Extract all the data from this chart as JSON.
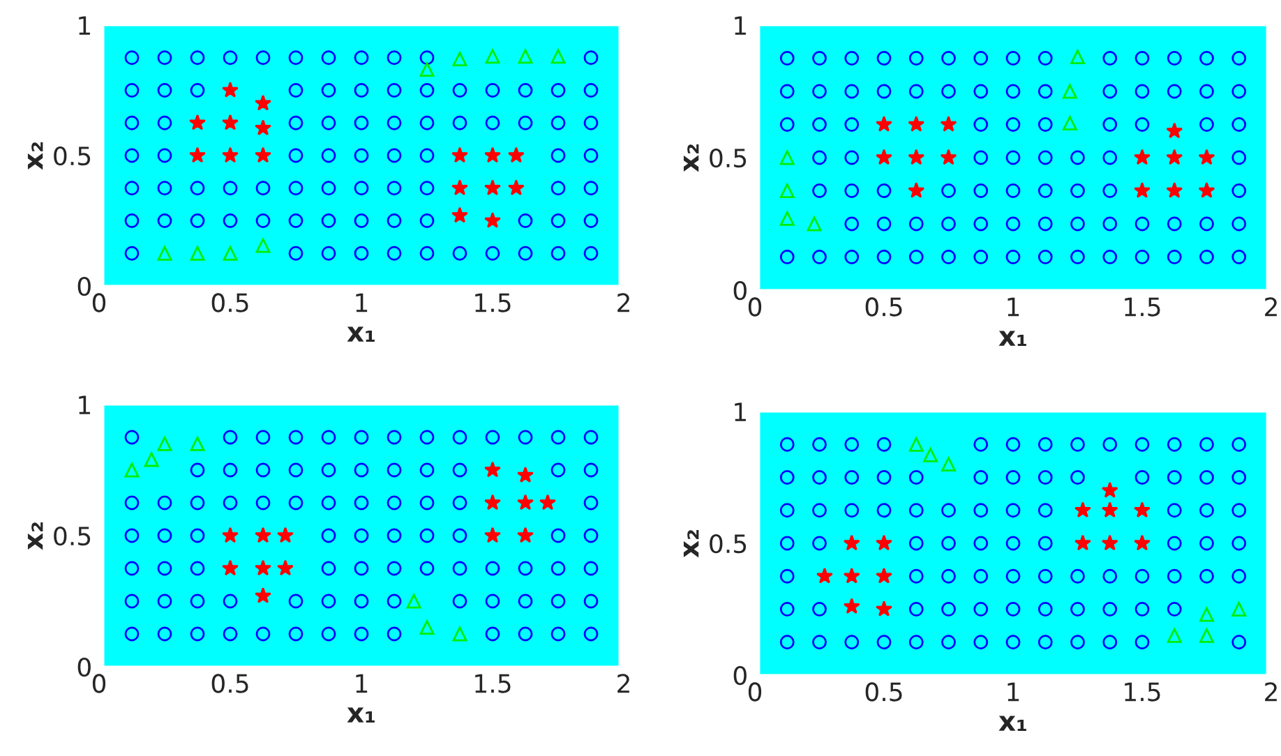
{
  "chart_data": [
    {
      "type": "scatter",
      "xlabel": "x₁",
      "ylabel": "x₂",
      "xlim": [
        0,
        2
      ],
      "ylim": [
        0,
        1
      ],
      "xticks": [
        0,
        0.5,
        1,
        1.5,
        2
      ],
      "yticks": [
        0,
        0.5,
        1
      ],
      "grid": false,
      "legend": false,
      "bands": [
        {
          "axis": "x",
          "from": 0.02,
          "to": 1.98,
          "color": "#00ffff"
        }
      ],
      "series": [
        {
          "marker": "circle",
          "color": "#0000ff",
          "x": [
            0.125,
            0.25,
            0.375,
            0.5,
            0.625,
            0.75,
            0.875,
            1,
            1.125,
            1.25,
            1.875,
            0.125,
            0.25,
            0.375,
            0.75,
            0.875,
            1,
            1.125,
            1.25,
            1.375,
            1.5,
            1.625,
            1.75,
            1.875,
            0.125,
            0.25,
            0.75,
            0.875,
            1,
            1.125,
            1.25,
            1.375,
            1.5,
            1.625,
            1.75,
            1.875,
            0.125,
            0.25,
            0.75,
            0.875,
            1,
            1.125,
            1.25,
            1.75,
            1.875,
            0.125,
            0.25,
            0.375,
            0.5,
            0.625,
            0.75,
            0.875,
            1,
            1.125,
            1.25,
            1.75,
            1.875,
            0.125,
            0.25,
            0.375,
            0.5,
            0.625,
            0.75,
            0.875,
            1,
            1.125,
            1.25,
            1.625,
            1.75,
            1.875,
            0.125,
            0.75,
            0.875,
            1,
            1.125,
            1.25,
            1.375,
            1.5,
            1.625,
            1.75,
            1.875
          ],
          "values": [
            0.875,
            0.875,
            0.875,
            0.875,
            0.875,
            0.875,
            0.875,
            0.875,
            0.875,
            0.875,
            0.875,
            0.75,
            0.75,
            0.75,
            0.75,
            0.75,
            0.75,
            0.75,
            0.75,
            0.75,
            0.75,
            0.75,
            0.75,
            0.75,
            0.625,
            0.625,
            0.625,
            0.625,
            0.625,
            0.625,
            0.625,
            0.625,
            0.625,
            0.625,
            0.625,
            0.625,
            0.5,
            0.5,
            0.5,
            0.5,
            0.5,
            0.5,
            0.5,
            0.5,
            0.5,
            0.375,
            0.375,
            0.375,
            0.375,
            0.375,
            0.375,
            0.375,
            0.375,
            0.375,
            0.375,
            0.375,
            0.375,
            0.25,
            0.25,
            0.25,
            0.25,
            0.25,
            0.25,
            0.25,
            0.25,
            0.25,
            0.25,
            0.25,
            0.25,
            0.25,
            0.125,
            0.125,
            0.125,
            0.125,
            0.125,
            0.125,
            0.125,
            0.125,
            0.125,
            0.125,
            0.125
          ]
        },
        {
          "marker": "star",
          "color": "#ff0000",
          "x": [
            0.5,
            0.625,
            0.375,
            0.5,
            0.625,
            0.375,
            0.5,
            0.625,
            1.375,
            1.5,
            1.59,
            1.375,
            1.5,
            1.59,
            1.375,
            1.5
          ],
          "values": [
            0.75,
            0.7,
            0.625,
            0.625,
            0.605,
            0.5,
            0.5,
            0.5,
            0.5,
            0.5,
            0.5,
            0.375,
            0.375,
            0.375,
            0.27,
            0.25
          ]
        },
        {
          "marker": "triangle",
          "color": "#00ee00",
          "x": [
            1.25,
            1.375,
            1.5,
            1.625,
            1.75,
            0.25,
            0.375,
            0.5,
            0.625
          ],
          "values": [
            0.83,
            0.87,
            0.88,
            0.88,
            0.88,
            0.125,
            0.125,
            0.125,
            0.155
          ]
        }
      ]
    },
    {
      "type": "scatter",
      "xlabel": "x₁",
      "ylabel": "x₂",
      "xlim": [
        0,
        2
      ],
      "ylim": [
        0,
        1
      ],
      "xticks": [
        0,
        0.5,
        1,
        1.5,
        2
      ],
      "yticks": [
        0,
        0.5,
        1
      ],
      "grid": false,
      "legend": false,
      "bands": [
        {
          "axis": "x",
          "from": 0.02,
          "to": 1.98,
          "color": "#00ffff"
        }
      ],
      "series": [
        {
          "marker": "circle",
          "color": "#0000ff",
          "x": [
            0.125,
            0.25,
            0.375,
            0.5,
            0.625,
            0.75,
            0.875,
            1,
            1.125,
            1.375,
            1.5,
            1.625,
            1.75,
            1.875,
            0.125,
            0.25,
            0.375,
            0.5,
            0.625,
            0.75,
            0.875,
            1,
            1.125,
            1.375,
            1.5,
            1.625,
            1.75,
            1.875,
            0.125,
            0.25,
            0.375,
            0.875,
            1,
            1.125,
            1.375,
            1.5,
            1.75,
            1.875,
            0.25,
            0.375,
            0.875,
            1,
            1.125,
            1.25,
            1.375,
            1.875,
            0.25,
            0.375,
            0.5,
            0.75,
            0.875,
            1,
            1.125,
            1.25,
            1.375,
            1.875,
            0.375,
            0.5,
            0.625,
            0.75,
            0.875,
            1,
            1.125,
            1.25,
            1.375,
            1.5,
            1.625,
            1.75,
            1.875,
            0.125,
            0.25,
            0.375,
            0.5,
            0.625,
            0.75,
            0.875,
            1,
            1.125,
            1.25,
            1.375,
            1.5,
            1.625,
            1.75,
            1.875
          ],
          "values": [
            0.875,
            0.875,
            0.875,
            0.875,
            0.875,
            0.875,
            0.875,
            0.875,
            0.875,
            0.875,
            0.875,
            0.875,
            0.875,
            0.875,
            0.75,
            0.75,
            0.75,
            0.75,
            0.75,
            0.75,
            0.75,
            0.75,
            0.75,
            0.75,
            0.75,
            0.75,
            0.75,
            0.75,
            0.625,
            0.625,
            0.625,
            0.625,
            0.625,
            0.625,
            0.625,
            0.625,
            0.625,
            0.625,
            0.5,
            0.5,
            0.5,
            0.5,
            0.5,
            0.5,
            0.5,
            0.5,
            0.375,
            0.375,
            0.375,
            0.375,
            0.375,
            0.375,
            0.375,
            0.375,
            0.375,
            0.375,
            0.25,
            0.25,
            0.25,
            0.25,
            0.25,
            0.25,
            0.25,
            0.25,
            0.25,
            0.25,
            0.25,
            0.25,
            0.25,
            0.125,
            0.125,
            0.125,
            0.125,
            0.125,
            0.125,
            0.125,
            0.125,
            0.125,
            0.125,
            0.125,
            0.125,
            0.125,
            0.125,
            0.125
          ]
        },
        {
          "marker": "star",
          "color": "#ff0000",
          "x": [
            0.5,
            0.625,
            0.75,
            1.625,
            0.5,
            0.625,
            0.75,
            1.5,
            1.625,
            1.75,
            0.625,
            1.5,
            1.625,
            1.75
          ],
          "values": [
            0.625,
            0.625,
            0.625,
            0.6,
            0.5,
            0.5,
            0.5,
            0.5,
            0.5,
            0.5,
            0.375,
            0.375,
            0.375,
            0.375
          ]
        },
        {
          "marker": "triangle",
          "color": "#00ee00",
          "x": [
            1.25,
            1.22,
            1.22,
            0.125,
            0.125,
            0.125,
            0.23
          ],
          "values": [
            0.88,
            0.75,
            0.63,
            0.5,
            0.375,
            0.27,
            0.25
          ]
        }
      ]
    },
    {
      "type": "scatter",
      "xlabel": "x₁",
      "ylabel": "x₂",
      "xlim": [
        0,
        2
      ],
      "ylim": [
        0,
        1
      ],
      "xticks": [
        0,
        0.5,
        1,
        1.5,
        2
      ],
      "yticks": [
        0,
        0.5,
        1
      ],
      "grid": false,
      "legend": false,
      "bands": [
        {
          "axis": "x",
          "from": 0.02,
          "to": 1.98,
          "color": "#00ffff"
        }
      ],
      "series": [
        {
          "marker": "circle",
          "color": "#0000ff",
          "x": [
            0.125,
            0.5,
            0.625,
            0.75,
            0.875,
            1,
            1.125,
            1.25,
            1.375,
            1.5,
            1.625,
            1.75,
            1.875,
            0.375,
            0.5,
            0.625,
            0.75,
            0.875,
            1,
            1.125,
            1.25,
            1.375,
            1.75,
            1.875,
            0.125,
            0.25,
            0.375,
            0.5,
            0.625,
            0.75,
            0.875,
            1,
            1.125,
            1.25,
            1.375,
            1.875,
            0.125,
            0.25,
            0.375,
            0.875,
            1,
            1.125,
            1.25,
            1.375,
            1.75,
            1.875,
            0.125,
            0.25,
            0.375,
            0.875,
            1,
            1.125,
            1.25,
            1.375,
            1.5,
            1.625,
            1.75,
            1.875,
            0.125,
            0.25,
            0.375,
            0.5,
            0.75,
            0.875,
            1,
            1.125,
            1.375,
            1.5,
            1.625,
            1.75,
            1.875,
            0.125,
            0.25,
            0.375,
            0.5,
            0.625,
            0.75,
            0.875,
            1,
            1.125,
            1.5,
            1.625,
            1.75,
            1.875
          ],
          "values": [
            0.875,
            0.875,
            0.875,
            0.875,
            0.875,
            0.875,
            0.875,
            0.875,
            0.875,
            0.875,
            0.875,
            0.875,
            0.875,
            0.75,
            0.75,
            0.75,
            0.75,
            0.75,
            0.75,
            0.75,
            0.75,
            0.75,
            0.75,
            0.75,
            0.625,
            0.625,
            0.625,
            0.625,
            0.625,
            0.625,
            0.625,
            0.625,
            0.625,
            0.625,
            0.625,
            0.625,
            0.5,
            0.5,
            0.5,
            0.5,
            0.5,
            0.5,
            0.5,
            0.5,
            0.5,
            0.5,
            0.375,
            0.375,
            0.375,
            0.375,
            0.375,
            0.375,
            0.375,
            0.375,
            0.375,
            0.375,
            0.375,
            0.375,
            0.25,
            0.25,
            0.25,
            0.25,
            0.25,
            0.25,
            0.25,
            0.25,
            0.25,
            0.25,
            0.25,
            0.25,
            0.25,
            0.125,
            0.125,
            0.125,
            0.125,
            0.125,
            0.125,
            0.125,
            0.125,
            0.125,
            0.125,
            0.125,
            0.125,
            0.125
          ]
        },
        {
          "marker": "star",
          "color": "#ff0000",
          "x": [
            1.5,
            1.625,
            1.5,
            1.625,
            1.71,
            0.5,
            0.625,
            0.71,
            1.5,
            1.625,
            0.5,
            0.625,
            0.71,
            0.625
          ],
          "values": [
            0.75,
            0.73,
            0.625,
            0.625,
            0.625,
            0.5,
            0.5,
            0.5,
            0.5,
            0.5,
            0.375,
            0.375,
            0.375,
            0.27
          ]
        },
        {
          "marker": "triangle",
          "color": "#00ee00",
          "x": [
            0.25,
            0.375,
            0.125,
            0.2,
            1.2,
            1.25,
            1.375
          ],
          "values": [
            0.85,
            0.85,
            0.75,
            0.79,
            0.25,
            0.15,
            0.125
          ]
        }
      ]
    },
    {
      "type": "scatter",
      "xlabel": "x₁",
      "ylabel": "x₂",
      "xlim": [
        0,
        2
      ],
      "ylim": [
        0,
        1
      ],
      "xticks": [
        0,
        0.5,
        1,
        1.5,
        2
      ],
      "yticks": [
        0,
        0.5,
        1
      ],
      "grid": false,
      "legend": false,
      "bands": [
        {
          "axis": "x",
          "from": 0.02,
          "to": 1.98,
          "color": "#00ffff"
        }
      ],
      "series": [
        {
          "marker": "circle",
          "color": "#0000ff",
          "x": [
            0.125,
            0.25,
            0.375,
            0.5,
            0.875,
            1,
            1.125,
            1.25,
            1.375,
            1.5,
            1.625,
            1.75,
            1.875,
            0.125,
            0.25,
            0.375,
            0.5,
            0.625,
            0.875,
            1,
            1.125,
            1.25,
            1.5,
            1.625,
            1.75,
            1.875,
            0.125,
            0.25,
            0.375,
            0.5,
            0.625,
            0.75,
            0.875,
            1,
            1.125,
            1.625,
            1.75,
            1.875,
            0.125,
            0.25,
            0.625,
            0.75,
            0.875,
            1,
            1.125,
            1.625,
            1.75,
            1.875,
            0.125,
            0.625,
            0.75,
            0.875,
            1,
            1.125,
            1.25,
            1.375,
            1.5,
            1.625,
            1.75,
            1.875,
            0.125,
            0.25,
            0.625,
            0.75,
            0.875,
            1,
            1.125,
            1.25,
            1.375,
            1.5,
            1.625,
            0.125,
            0.25,
            0.375,
            0.5,
            0.625,
            0.75,
            0.875,
            1,
            1.125,
            1.25,
            1.375,
            1.5,
            1.875
          ],
          "values": [
            0.875,
            0.875,
            0.875,
            0.875,
            0.875,
            0.875,
            0.875,
            0.875,
            0.875,
            0.875,
            0.875,
            0.875,
            0.875,
            0.75,
            0.75,
            0.75,
            0.75,
            0.75,
            0.75,
            0.75,
            0.75,
            0.75,
            0.75,
            0.75,
            0.75,
            0.75,
            0.625,
            0.625,
            0.625,
            0.625,
            0.625,
            0.625,
            0.625,
            0.625,
            0.625,
            0.625,
            0.625,
            0.625,
            0.5,
            0.5,
            0.5,
            0.5,
            0.5,
            0.5,
            0.5,
            0.5,
            0.5,
            0.5,
            0.375,
            0.375,
            0.375,
            0.375,
            0.375,
            0.375,
            0.375,
            0.375,
            0.375,
            0.375,
            0.375,
            0.375,
            0.25,
            0.25,
            0.25,
            0.25,
            0.25,
            0.25,
            0.25,
            0.25,
            0.25,
            0.25,
            0.25,
            0.125,
            0.125,
            0.125,
            0.125,
            0.125,
            0.125,
            0.125,
            0.125,
            0.125,
            0.125,
            0.125,
            0.125,
            0.125
          ]
        },
        {
          "marker": "star",
          "color": "#ff0000",
          "x": [
            1.375,
            1.27,
            1.375,
            1.5,
            0.375,
            0.5,
            1.27,
            1.375,
            1.5,
            0.27,
            0.375,
            0.5,
            0.375,
            0.5
          ],
          "values": [
            0.7,
            0.625,
            0.625,
            0.625,
            0.5,
            0.5,
            0.5,
            0.5,
            0.5,
            0.375,
            0.375,
            0.375,
            0.26,
            0.25
          ]
        },
        {
          "marker": "triangle",
          "color": "#00ee00",
          "x": [
            0.625,
            0.68,
            0.75,
            1.75,
            1.875,
            1.625,
            1.75
          ],
          "values": [
            0.875,
            0.835,
            0.8,
            0.23,
            0.25,
            0.15,
            0.15
          ]
        }
      ]
    }
  ]
}
